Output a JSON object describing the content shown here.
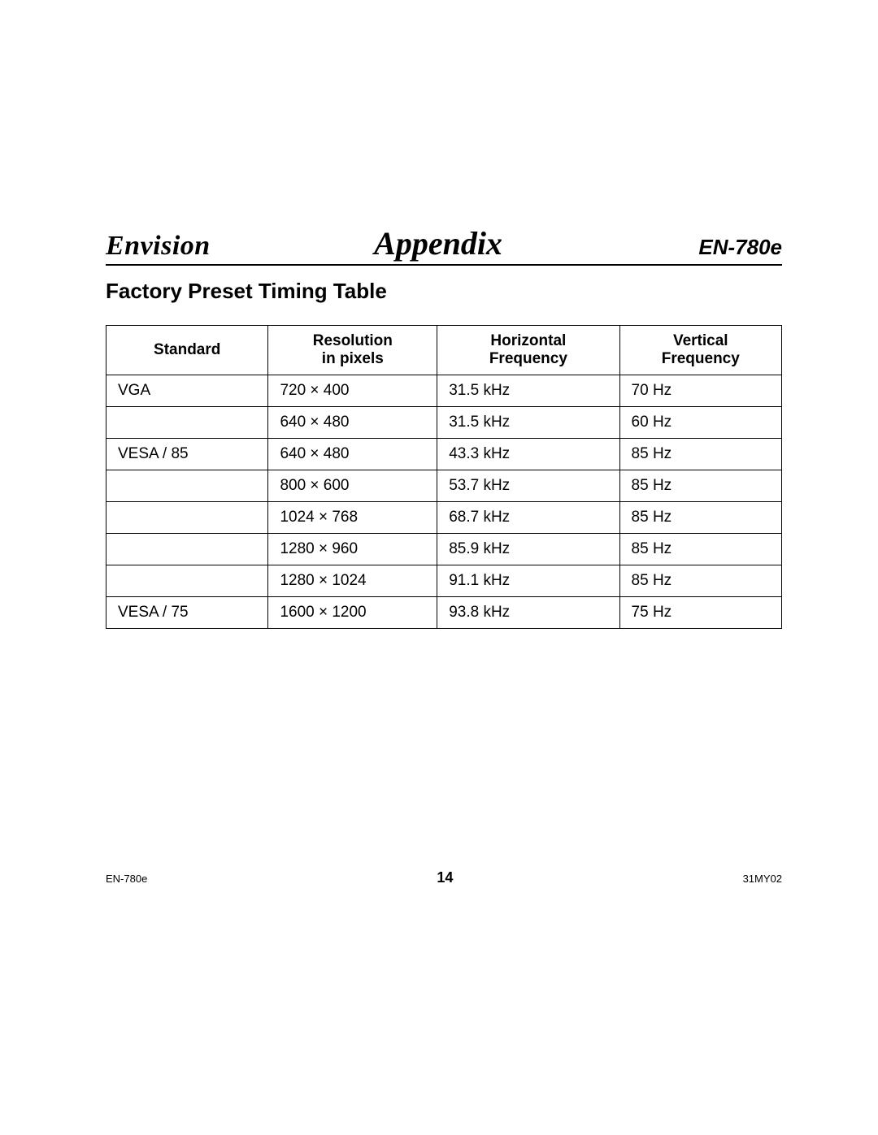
{
  "header": {
    "brand": "Envision",
    "section_title": "Appendix",
    "model": "EN-780e"
  },
  "subtitle": "Factory Preset Timing Table",
  "table": {
    "columns": [
      {
        "line1": "Standard",
        "line2": ""
      },
      {
        "line1": "Resolution",
        "line2": "in pixels"
      },
      {
        "line1": "Horizontal",
        "line2": "Frequency"
      },
      {
        "line1": "Vertical",
        "line2": "Frequency"
      }
    ],
    "col_widths_pct": [
      24,
      25,
      27,
      24
    ],
    "rows": [
      {
        "standard": "VGA",
        "resolution": "720 × 400",
        "hfreq": "31.5 kHz",
        "vfreq": "70 Hz"
      },
      {
        "standard": "",
        "resolution": "640 × 480",
        "hfreq": "31.5 kHz",
        "vfreq": "60 Hz"
      },
      {
        "standard": "VESA / 85",
        "resolution": "640 × 480",
        "hfreq": "43.3 kHz",
        "vfreq": "85 Hz"
      },
      {
        "standard": "",
        "resolution": "800 × 600",
        "hfreq": "53.7 kHz",
        "vfreq": "85 Hz"
      },
      {
        "standard": "",
        "resolution": "1024 × 768",
        "hfreq": "68.7 kHz",
        "vfreq": "85 Hz"
      },
      {
        "standard": "",
        "resolution": "1280 × 960",
        "hfreq": "85.9 kHz",
        "vfreq": "85 Hz"
      },
      {
        "standard": "",
        "resolution": "1280 × 1024",
        "hfreq": "91.1 kHz",
        "vfreq": "85 Hz"
      },
      {
        "standard": "VESA / 75",
        "resolution": "1600 × 1200",
        "hfreq": "93.8 kHz",
        "vfreq": "75 Hz"
      }
    ],
    "border_color": "#000000",
    "header_fontsize": 19,
    "cell_fontsize": 19
  },
  "footer": {
    "left": "EN-780e",
    "page_number": "14",
    "right": "31MY02"
  },
  "colors": {
    "background": "#ffffff",
    "text": "#000000",
    "rule": "#000000"
  },
  "typography": {
    "brand_fontsize": 34,
    "section_title_fontsize": 40,
    "model_fontsize": 26,
    "subtitle_fontsize": 26,
    "footer_small_fontsize": 13,
    "footer_page_fontsize": 18
  }
}
